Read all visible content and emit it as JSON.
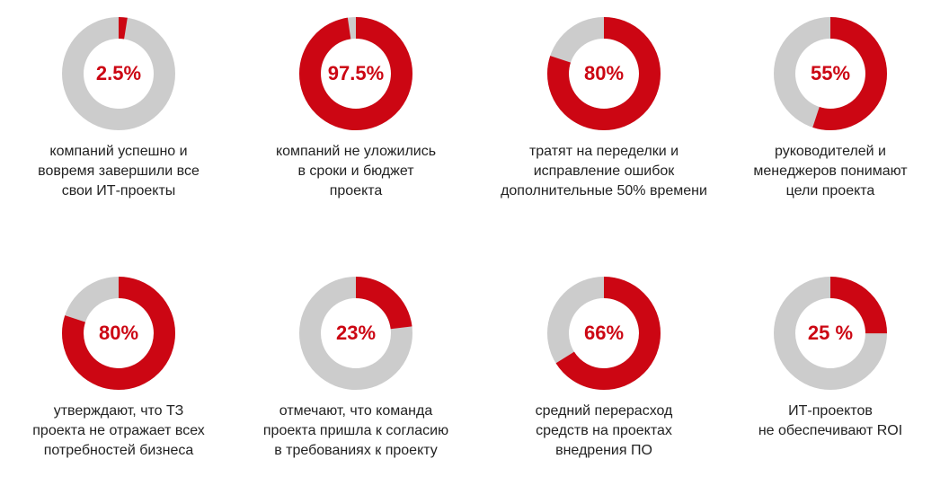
{
  "colors": {
    "filled": "#cc0613",
    "remainder": "#cccccc",
    "text": "#222222"
  },
  "chart_data": [
    {
      "type": "pie",
      "value": 2.5,
      "label": "2.5%",
      "caption": [
        "компаний успешно и",
        "вовремя завершили все",
        "свои ИТ-проекты"
      ]
    },
    {
      "type": "pie",
      "value": 97.5,
      "label": "97.5%",
      "caption": [
        "компаний не уложились",
        "в сроки и бюджет",
        "проекта"
      ]
    },
    {
      "type": "pie",
      "value": 80,
      "label": "80%",
      "caption": [
        "тратят на переделки и",
        "исправление ошибок",
        "дополнительные 50% времени"
      ]
    },
    {
      "type": "pie",
      "value": 55,
      "label": "55%",
      "caption": [
        "руководителей и",
        "менеджеров понимают",
        "цели проекта"
      ]
    },
    {
      "type": "pie",
      "value": 80,
      "label": "80%",
      "caption": [
        "утверждают, что ТЗ",
        "проекта не отражает всех",
        "потребностей бизнеса"
      ]
    },
    {
      "type": "pie",
      "value": 23,
      "label": "23%",
      "caption": [
        "отмечают, что команда",
        "проекта пришла к согласию",
        "в требованиях к проекту"
      ]
    },
    {
      "type": "pie",
      "value": 66,
      "label": "66%",
      "caption": [
        "средний перерасход",
        "средств на проектах",
        "внедрения ПО"
      ]
    },
    {
      "type": "pie",
      "value": 25,
      "label": "25 %",
      "caption": [
        "ИТ-проектов",
        "не обеспечивают ROI"
      ]
    }
  ]
}
